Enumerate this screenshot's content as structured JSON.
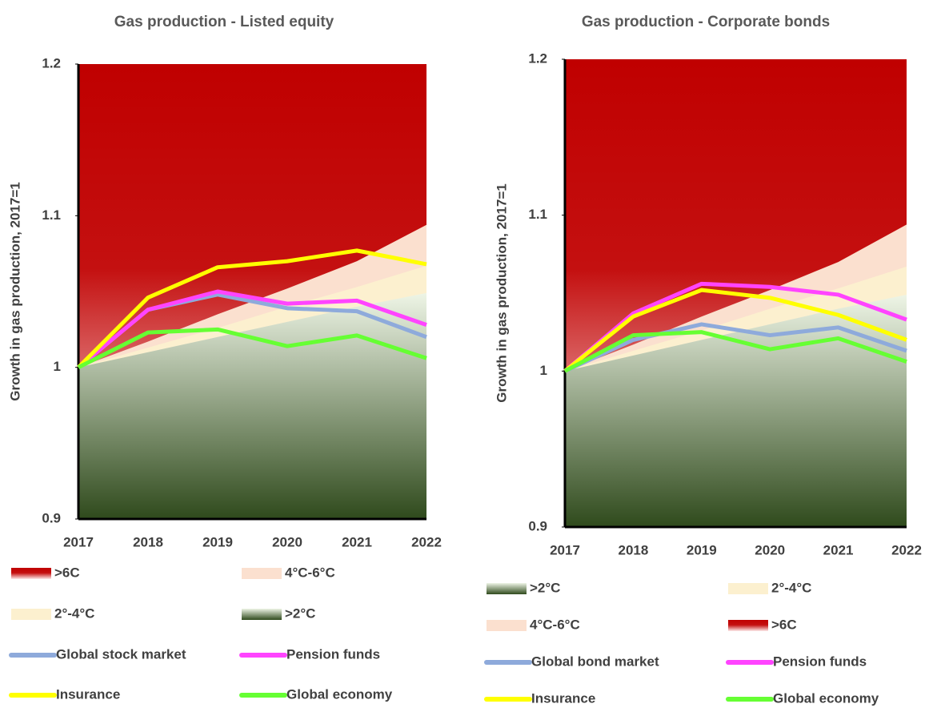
{
  "chart_data": [
    {
      "type": "line",
      "title": "Gas production - Listed equity",
      "y_label": "Growth in gas production, 2017=1",
      "x": [
        2017,
        2018,
        2019,
        2020,
        2021,
        2022
      ],
      "ylim": [
        0.9,
        1.2
      ],
      "yticks": [
        0.9,
        1,
        1.1,
        1.2
      ],
      "bands": [
        {
          "name": ">6C",
          "color": "#c00000"
        },
        {
          "name": "4°C-6°C",
          "color": "#fbe0cf",
          "upper": [
            1,
            1.017,
            1.035,
            1.052,
            1.07,
            1.094
          ]
        },
        {
          "name": "2°-4°C",
          "color": "#fcf0cf",
          "upper": [
            1,
            1.013,
            1.026,
            1.04,
            1.053,
            1.067
          ]
        },
        {
          "name": ">2°C",
          "color": "#375623",
          "upper": [
            1,
            1.01,
            1.02,
            1.03,
            1.04,
            1.049
          ]
        }
      ],
      "series": [
        {
          "name": "Global stock market",
          "color": "#8eaadb",
          "values": [
            1,
            1.038,
            1.048,
            1.039,
            1.037,
            1.02
          ]
        },
        {
          "name": "Pension funds",
          "color": "#ff44ff",
          "values": [
            1,
            1.038,
            1.05,
            1.042,
            1.044,
            1.028
          ]
        },
        {
          "name": "Insurance",
          "color": "#ffff00",
          "values": [
            1,
            1.046,
            1.066,
            1.07,
            1.077,
            1.068
          ]
        },
        {
          "name": "Global economy",
          "color": "#66ff33",
          "values": [
            1,
            1.023,
            1.025,
            1.014,
            1.021,
            1.006
          ]
        }
      ]
    },
    {
      "type": "line",
      "title": "Gas production - Corporate bonds",
      "y_label": "Growth in gas production, 2017=1",
      "x": [
        2017,
        2018,
        2019,
        2020,
        2021,
        2022
      ],
      "ylim": [
        0.9,
        1.2
      ],
      "yticks": [
        0.9,
        1,
        1.1,
        1.2
      ],
      "bands": [
        {
          "name": ">2°C",
          "color": "#375623",
          "upper": [
            1,
            1.01,
            1.02,
            1.03,
            1.04,
            1.049
          ]
        },
        {
          "name": "2°-4°C",
          "color": "#fcf0cf",
          "upper": [
            1,
            1.013,
            1.026,
            1.04,
            1.053,
            1.067
          ]
        },
        {
          "name": "4°C-6°C",
          "color": "#fbe0cf",
          "upper": [
            1,
            1.017,
            1.035,
            1.052,
            1.07,
            1.094
          ]
        },
        {
          "name": ">6C",
          "color": "#c00000"
        }
      ],
      "series": [
        {
          "name": "Global bond market",
          "color": "#8eaadb",
          "values": [
            1,
            1.02,
            1.03,
            1.023,
            1.028,
            1.013
          ]
        },
        {
          "name": "Pension funds",
          "color": "#ff44ff",
          "values": [
            1,
            1.037,
            1.056,
            1.054,
            1.049,
            1.033
          ]
        },
        {
          "name": "Insurance",
          "color": "#ffff00",
          "values": [
            1,
            1.035,
            1.052,
            1.047,
            1.036,
            1.02
          ]
        },
        {
          "name": "Global economy",
          "color": "#66ff33",
          "values": [
            1,
            1.023,
            1.025,
            1.014,
            1.021,
            1.006
          ]
        }
      ]
    }
  ]
}
